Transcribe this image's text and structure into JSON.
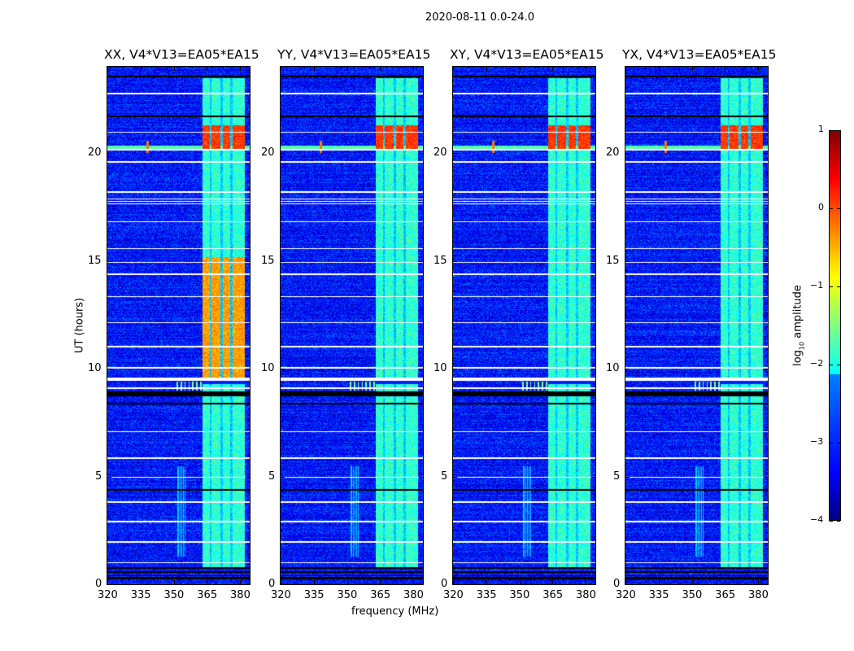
{
  "suptitle": "2020-08-11 0.0-24.0",
  "chart_data": {
    "type": "heatmap",
    "title": "2020-08-11 0.0-24.0",
    "xlabel": "frequency (MHz)",
    "ylabel": "UT (hours)",
    "xlim": [
      320,
      384.4
    ],
    "ylim": [
      0,
      24
    ],
    "xticks": [
      320,
      335,
      350,
      365,
      380
    ],
    "yticks": [
      0,
      5,
      10,
      15,
      20
    ],
    "panels": [
      {
        "title": "XX, V4*V13=EA05*EA15",
        "pol": "XX",
        "band_level_9_15h": -0.4
      },
      {
        "title": "YY, V4*V13=EA05*EA15",
        "pol": "YY",
        "band_level_9_15h": -1.8
      },
      {
        "title": "XY, V4*V13=EA05*EA15",
        "pol": "XY",
        "band_level_9_15h": -1.8
      },
      {
        "title": "YX, V4*V13=EA05*EA15",
        "pol": "YX",
        "band_level_9_15h": -1.8
      }
    ],
    "background_level": -3.3,
    "rfi_band_mhz": [
      363,
      382
    ],
    "rfi_band_level": -1.9,
    "strong_rfi_hours": [
      20.3,
      21.2
    ],
    "strong_rfi_level": 0.1,
    "spike_mhz": 338,
    "spike_hour": 20.3,
    "colorbar": {
      "label": "log10 amplitude",
      "label_main": "log",
      "label_sub": "10",
      "label_rest": " amplitude",
      "min": -4,
      "max": 1,
      "ticks": [
        "1",
        "0",
        "−1",
        "−2",
        "−3",
        "−4"
      ],
      "colormap": "jet"
    }
  }
}
